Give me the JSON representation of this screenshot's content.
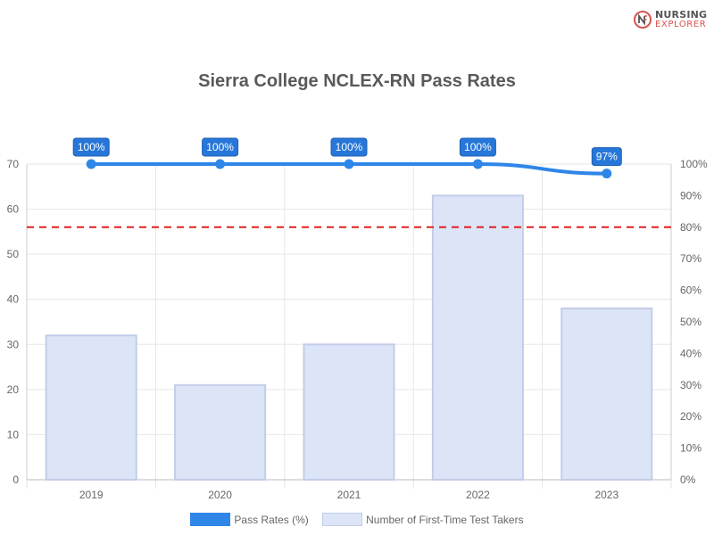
{
  "logo": {
    "line1": "NURSING",
    "line2": "EXPLORER"
  },
  "chart_data": {
    "type": "bar",
    "title": "Sierra College NCLEX-RN Pass Rates",
    "categories": [
      "2019",
      "2020",
      "2021",
      "2022",
      "2023"
    ],
    "series": [
      {
        "name": "Pass Rates (%)",
        "type": "line",
        "axis": "right",
        "values": [
          100,
          100,
          100,
          100,
          97
        ],
        "labels": [
          "100%",
          "100%",
          "100%",
          "100%",
          "97%"
        ],
        "color": "#2e86e8"
      },
      {
        "name": "Number of First-Time Test Takers",
        "type": "bar",
        "axis": "left",
        "values": [
          32,
          21,
          30,
          63,
          38
        ],
        "color": "#dce4f7",
        "border": "#c3cde8"
      }
    ],
    "y_left": {
      "ylim": [
        0,
        70
      ],
      "ticks": [
        0,
        10,
        20,
        30,
        40,
        50,
        60,
        70
      ]
    },
    "y_right": {
      "ylim": [
        0,
        100
      ],
      "ticks": [
        "0%",
        "10%",
        "20%",
        "30%",
        "40%",
        "50%",
        "60%",
        "70%",
        "80%",
        "90%",
        "100%"
      ]
    },
    "reference_line": {
      "value": 80,
      "axis": "right",
      "style": "dashed",
      "color": "#e02020"
    },
    "grid": true,
    "legend_position": "bottom"
  }
}
